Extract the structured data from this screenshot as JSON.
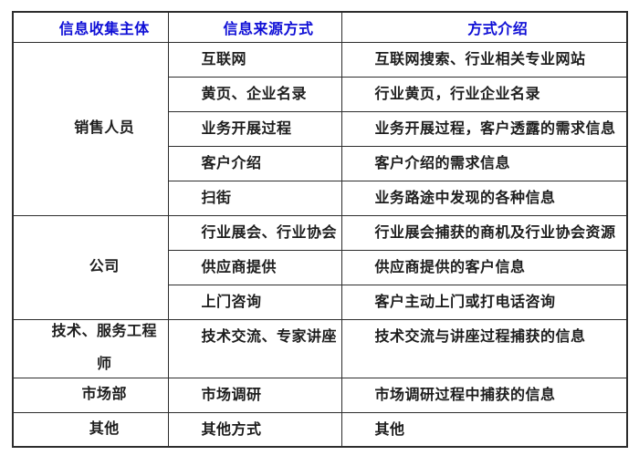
{
  "colors": {
    "header_text": "#0f0fd6",
    "body_text": "#1d1d1d",
    "border": "#2d2d2d",
    "background": "#ffffff"
  },
  "table": {
    "headers": [
      "信息收集主体",
      "信息来源方式",
      "方式介绍"
    ],
    "groups": [
      {
        "subject": "销售人员",
        "rows": [
          {
            "source": "互联网",
            "desc": "互联网搜索、行业相关专业网站"
          },
          {
            "source": "黄页、企业名录",
            "desc": "行业黄页，行业企业名录"
          },
          {
            "source": "业务开展过程",
            "desc": "业务开展过程，客户透露的需求信息"
          },
          {
            "source": "客户介绍",
            "desc": "客户介绍的需求信息"
          },
          {
            "source": "扫街",
            "desc": "业务路途中发现的各种信息"
          }
        ]
      },
      {
        "subject": "公司",
        "rows": [
          {
            "source": "行业展会、行业协会",
            "desc": "行业展会捕获的商机及行业协会资源"
          },
          {
            "source": "供应商提供",
            "desc": "供应商提供的客户信息"
          },
          {
            "source": "上门咨询",
            "desc": "客户主动上门或打电话咨询"
          }
        ]
      },
      {
        "subject": "技术、服务工程师",
        "subject_lines": [
          "技术、服务工程",
          "师"
        ],
        "rows": [
          {
            "source": "技术交流、专家讲座",
            "desc": "技术交流与讲座过程捕获的信息"
          }
        ]
      },
      {
        "subject": "市场部",
        "rows": [
          {
            "source": "市场调研",
            "desc": "市场调研过程中捕获的信息"
          }
        ]
      },
      {
        "subject": "其他",
        "rows": [
          {
            "source": "其他方式",
            "desc": "其他"
          }
        ]
      }
    ]
  }
}
